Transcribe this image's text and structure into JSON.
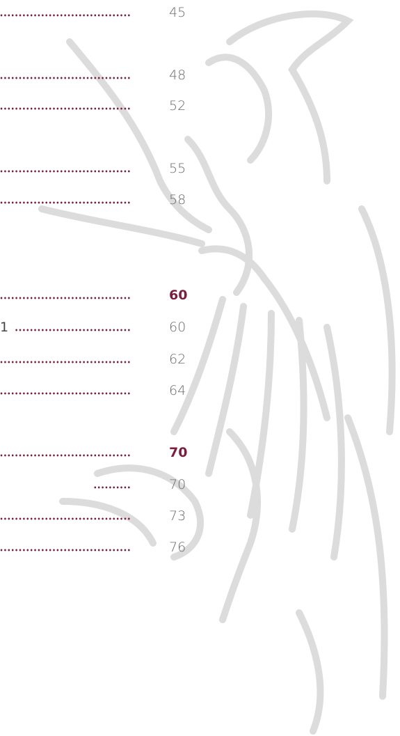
{
  "entries": [
    {
      "page": 45
    },
    {
      "page": 48
    },
    {
      "page": 52
    },
    {
      "page": 55
    },
    {
      "page": 58
    }
  ],
  "sections": [
    {
      "page": 60,
      "entries": [
        {
          "label": "1",
          "page": 60
        },
        {
          "page": 62
        },
        {
          "page": 64
        }
      ]
    },
    {
      "page": 70,
      "entries": [
        {
          "page": 70
        },
        {
          "page": 73
        },
        {
          "page": 76
        }
      ]
    }
  ]
}
